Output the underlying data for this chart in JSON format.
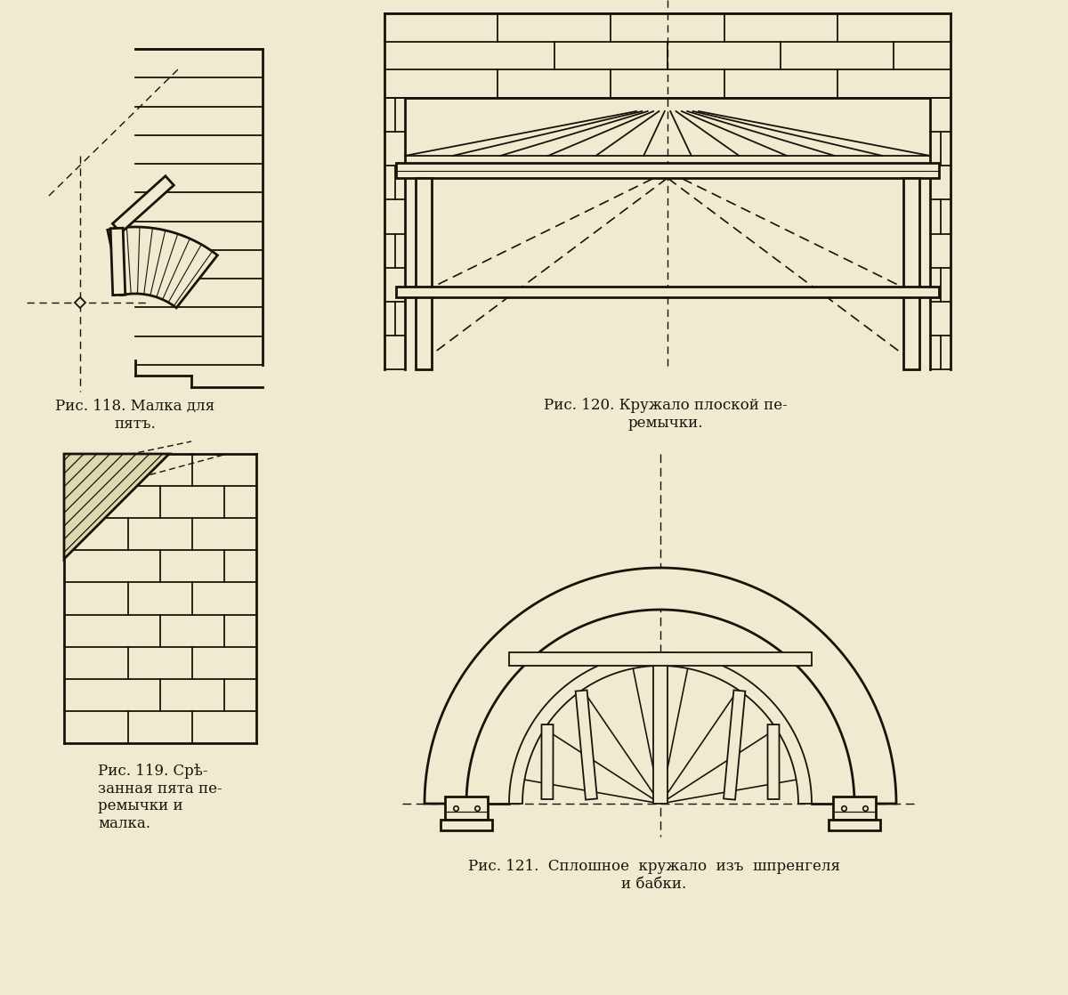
{
  "bg_color": "#f0ead0",
  "line_color": "#1a1208",
  "fig118_caption": "Рис. 118. Малка для\nпятъ.",
  "fig119_caption": "Рис. 119. Срѣ-\nзанная пята пе-\nремычки и\nмалка.",
  "fig120_caption": "Рис. 120. Кружало плоской пе-\nремычки.",
  "fig121_caption": "Рис. 121.  Сплошное  кружало  изъ  шпренгеля\nи бабки."
}
